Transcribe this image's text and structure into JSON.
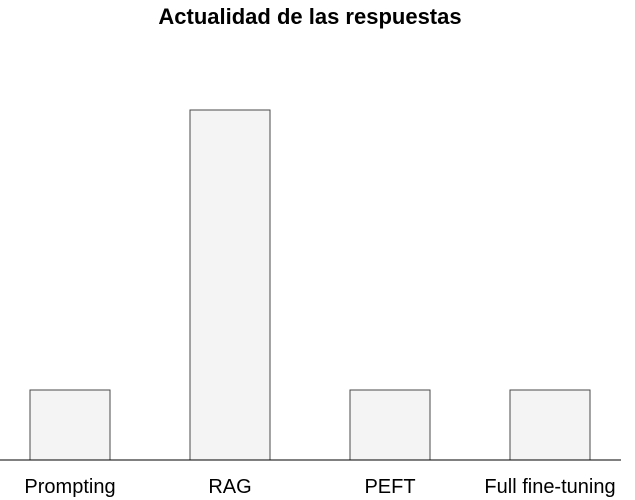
{
  "chart_data": {
    "type": "bar",
    "title": "Actualidad de las respuestas",
    "xlabel": "",
    "ylabel": "",
    "categories": [
      "Prompting",
      "RAG",
      "PEFT",
      "Full fine-tuning"
    ],
    "values": [
      1,
      5,
      1,
      1
    ],
    "ylim": [
      0,
      5
    ],
    "grid": false,
    "legend": "none",
    "colors": {
      "bar_fill": "#f4f4f4",
      "bar_stroke": "#4a4a4a",
      "axis": "#000000",
      "text": "#000000"
    }
  }
}
